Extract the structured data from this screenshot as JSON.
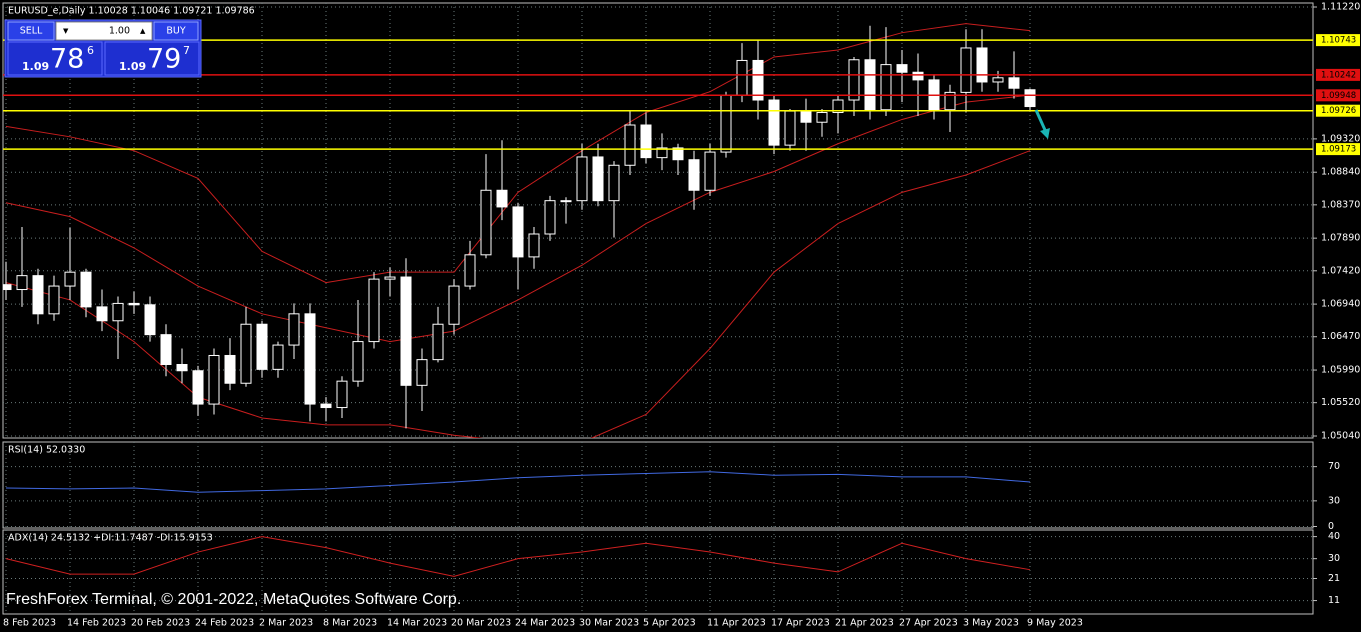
{
  "chart_data": [
    {
      "type": "candlestick",
      "title": "EURUSD_e,Daily  1.10028 1.10046 1.09721 1.09786",
      "categories": [
        "8 Feb 2023",
        null,
        null,
        null,
        "14 Feb 2023",
        null,
        null,
        null,
        "20 Feb 2023",
        null,
        null,
        null,
        "24 Feb 2023",
        null,
        null,
        null,
        "2 Mar 2023",
        null,
        null,
        null,
        "8 Mar 2023",
        null,
        null,
        null,
        "14 Mar 2023",
        null,
        null,
        null,
        "20 Mar 2023",
        null,
        null,
        null,
        "24 Mar 2023",
        null,
        null,
        null,
        "30 Mar 2023",
        null,
        null,
        null,
        "5 Apr 2023",
        null,
        null,
        null,
        "11 Apr 2023",
        null,
        null,
        null,
        "17 Apr 2023",
        null,
        null,
        null,
        "21 Apr 2023",
        null,
        null,
        null,
        "27 Apr 2023",
        null,
        null,
        null,
        "3 May 2023",
        null,
        null,
        null,
        "9 May 2023"
      ],
      "open": [
        1.0722,
        1.0715,
        1.0735,
        1.068,
        1.072,
        1.074,
        1.069,
        1.067,
        1.0695,
        1.0693,
        1.065,
        1.0607,
        1.0598,
        1.055,
        1.062,
        1.058,
        1.0665,
        1.06,
        1.0635,
        1.068,
        1.055,
        1.0545,
        1.0583,
        1.064,
        1.073,
        1.0733,
        1.0577,
        1.0614,
        1.0665,
        1.072,
        1.0765,
        1.0858,
        1.0834,
        1.0762,
        1.0795,
        1.0843,
        1.0843,
        1.0906,
        1.0843,
        1.0894,
        1.0952,
        1.0905,
        1.0919,
        1.0902,
        1.0858,
        1.0913,
        1.0995,
        1.1045,
        1.0988,
        1.0923,
        1.0972,
        1.0956,
        1.097,
        1.0988,
        1.1046,
        1.0974,
        1.1039,
        1.1028,
        1.1017,
        1.0974,
        1.0999,
        1.1063,
        1.1014,
        1.102,
        1.10028
      ],
      "high": [
        1.0755,
        1.0805,
        1.0745,
        1.0735,
        1.0804,
        1.0745,
        1.0715,
        1.0705,
        1.0712,
        1.0705,
        1.0665,
        1.063,
        1.0605,
        1.063,
        1.0645,
        1.069,
        1.067,
        1.064,
        1.0695,
        1.0695,
        1.056,
        1.059,
        1.07,
        1.074,
        1.0747,
        1.076,
        1.063,
        1.069,
        1.073,
        1.0785,
        1.091,
        1.093,
        1.084,
        1.0805,
        1.085,
        1.0848,
        1.0925,
        1.0925,
        1.09,
        1.0972,
        1.097,
        1.094,
        1.0925,
        1.0915,
        1.0925,
        1.1,
        1.107,
        1.1075,
        1.0995,
        1.0975,
        1.099,
        1.0975,
        1.0995,
        1.105,
        1.1095,
        1.1093,
        1.106,
        1.1055,
        1.1025,
        1.101,
        1.109,
        1.109,
        1.103,
        1.1058,
        1.10046
      ],
      "low": [
        1.07,
        1.069,
        1.0665,
        1.067,
        1.07,
        1.0675,
        1.0655,
        1.0615,
        1.068,
        1.064,
        1.059,
        1.058,
        1.0533,
        1.0535,
        1.057,
        1.0575,
        1.0588,
        1.0588,
        1.0615,
        1.0525,
        1.0525,
        1.053,
        1.0575,
        1.063,
        1.0705,
        1.0515,
        1.054,
        1.061,
        1.065,
        1.0715,
        1.076,
        1.0815,
        1.0715,
        1.0745,
        1.0785,
        1.081,
        1.083,
        1.0835,
        1.079,
        1.088,
        1.0897,
        1.0887,
        1.088,
        1.083,
        1.085,
        1.0905,
        1.0985,
        1.096,
        1.091,
        1.0915,
        1.0915,
        1.0935,
        1.094,
        1.0965,
        1.096,
        1.0965,
        1.0985,
        1.0965,
        1.096,
        1.0942,
        1.097,
        1.1,
        1.1,
        1.099,
        1.09721
      ],
      "close": [
        1.0715,
        1.0735,
        1.068,
        1.072,
        1.074,
        1.069,
        1.067,
        1.0695,
        1.0693,
        1.065,
        1.0607,
        1.0598,
        1.055,
        1.062,
        1.058,
        1.0665,
        1.06,
        1.0635,
        1.068,
        1.055,
        1.0545,
        1.0583,
        1.064,
        1.073,
        1.0733,
        1.0577,
        1.0614,
        1.0665,
        1.072,
        1.0765,
        1.0858,
        1.0834,
        1.0762,
        1.0795,
        1.0843,
        1.0843,
        1.0906,
        1.0843,
        1.0894,
        1.0952,
        1.0905,
        1.0919,
        1.0902,
        1.0858,
        1.0913,
        1.0995,
        1.1045,
        1.0988,
        1.0923,
        1.0972,
        1.0956,
        1.097,
        1.0988,
        1.1046,
        1.0974,
        1.1039,
        1.1028,
        1.1017,
        1.0974,
        1.0999,
        1.1063,
        1.1014,
        1.102,
        1.1005,
        1.09786
      ],
      "up_color": "#000000",
      "down_color": "#ffffff",
      "line_color": "#ffffff",
      "bands": {
        "color": "#c81e1e",
        "x": [
          0,
          4,
          8,
          12,
          16,
          20,
          24,
          28,
          32,
          36,
          40,
          44,
          48,
          52,
          56,
          60,
          64
        ],
        "upper": [
          1.095,
          1.0935,
          1.0915,
          1.0875,
          1.077,
          1.0725,
          1.074,
          1.074,
          1.0855,
          1.0915,
          1.097,
          1.1,
          1.105,
          1.106,
          1.1085,
          1.1098,
          1.1088
        ],
        "middle": [
          1.084,
          1.082,
          1.0775,
          1.072,
          1.068,
          1.066,
          1.064,
          1.0655,
          1.07,
          1.075,
          1.081,
          1.0855,
          1.0885,
          1.0925,
          1.096,
          1.0985,
          1.0995
        ],
        "lower": [
          1.0725,
          1.07,
          1.064,
          1.056,
          1.053,
          1.052,
          1.052,
          1.0505,
          1.0495,
          1.0495,
          1.0535,
          1.063,
          1.074,
          1.081,
          1.0855,
          1.088,
          1.0915
        ]
      },
      "levels": [
        {
          "value": 1.10743,
          "color": "#ffff00"
        },
        {
          "value": 1.10242,
          "color": "#e01010"
        },
        {
          "value": 1.09948,
          "color": "#e01010"
        },
        {
          "value": 1.09726,
          "color": "#ffff00"
        },
        {
          "value": 1.09173,
          "color": "#ffff00"
        }
      ],
      "ylim": [
        1.0504,
        1.1122
      ],
      "yticks": [
        {
          "value": 1.1122,
          "label": "1.11220"
        },
        {
          "value": 1.0932,
          "label": "1.09320"
        },
        {
          "value": 1.0884,
          "label": "1.08840"
        },
        {
          "value": 1.0837,
          "label": "1.08370"
        },
        {
          "value": 1.0789,
          "label": "1.07890"
        },
        {
          "value": 1.0742,
          "label": "1.07420"
        },
        {
          "value": 1.0694,
          "label": "1.06940"
        },
        {
          "value": 1.0647,
          "label": "1.06470"
        },
        {
          "value": 1.0599,
          "label": "1.05990"
        },
        {
          "value": 1.0552,
          "label": "1.05520"
        },
        {
          "value": 1.0504,
          "label": "1.05040"
        }
      ],
      "grid": true
    },
    {
      "type": "line",
      "title": "RSI(14) 52.0330",
      "x": [
        0,
        4,
        8,
        12,
        16,
        20,
        24,
        28,
        32,
        36,
        40,
        44,
        48,
        52,
        56,
        60,
        64
      ],
      "series": [
        {
          "color": "#4169e1",
          "values": [
            45,
            44,
            45,
            40,
            42,
            44,
            48,
            52,
            57,
            60,
            62,
            64,
            60,
            61,
            58,
            58,
            52
          ]
        }
      ],
      "ylim": [
        0,
        100
      ],
      "yticks": [
        70,
        30,
        0
      ],
      "grid": true
    },
    {
      "type": "line",
      "title": "ADX(14) 24.5132 +DI:11.7487 -DI:15.9153",
      "x": [
        0,
        4,
        8,
        12,
        16,
        20,
        24,
        28,
        32,
        36,
        40,
        44,
        48,
        52,
        56,
        60,
        64
      ],
      "series": [
        {
          "color": "#d02020",
          "values": [
            30,
            23,
            23,
            33,
            40,
            35,
            28,
            22,
            30,
            33,
            37,
            33,
            28,
            24,
            37,
            30,
            25
          ]
        }
      ],
      "ylim": [
        4,
        43
      ],
      "yticks": [
        40,
        30,
        21,
        11
      ],
      "grid": true
    }
  ],
  "trade_panel": {
    "sell": "SELL",
    "lot": "1.00",
    "buy": "BUY",
    "bid": {
      "prefix": "1.09",
      "big": "78",
      "small": "6"
    },
    "ask": {
      "prefix": "1.09",
      "big": "79",
      "small": "7"
    }
  },
  "watermark": "FreshForex Terminal, © 2001-2022, MetaQuotes Software Corp."
}
